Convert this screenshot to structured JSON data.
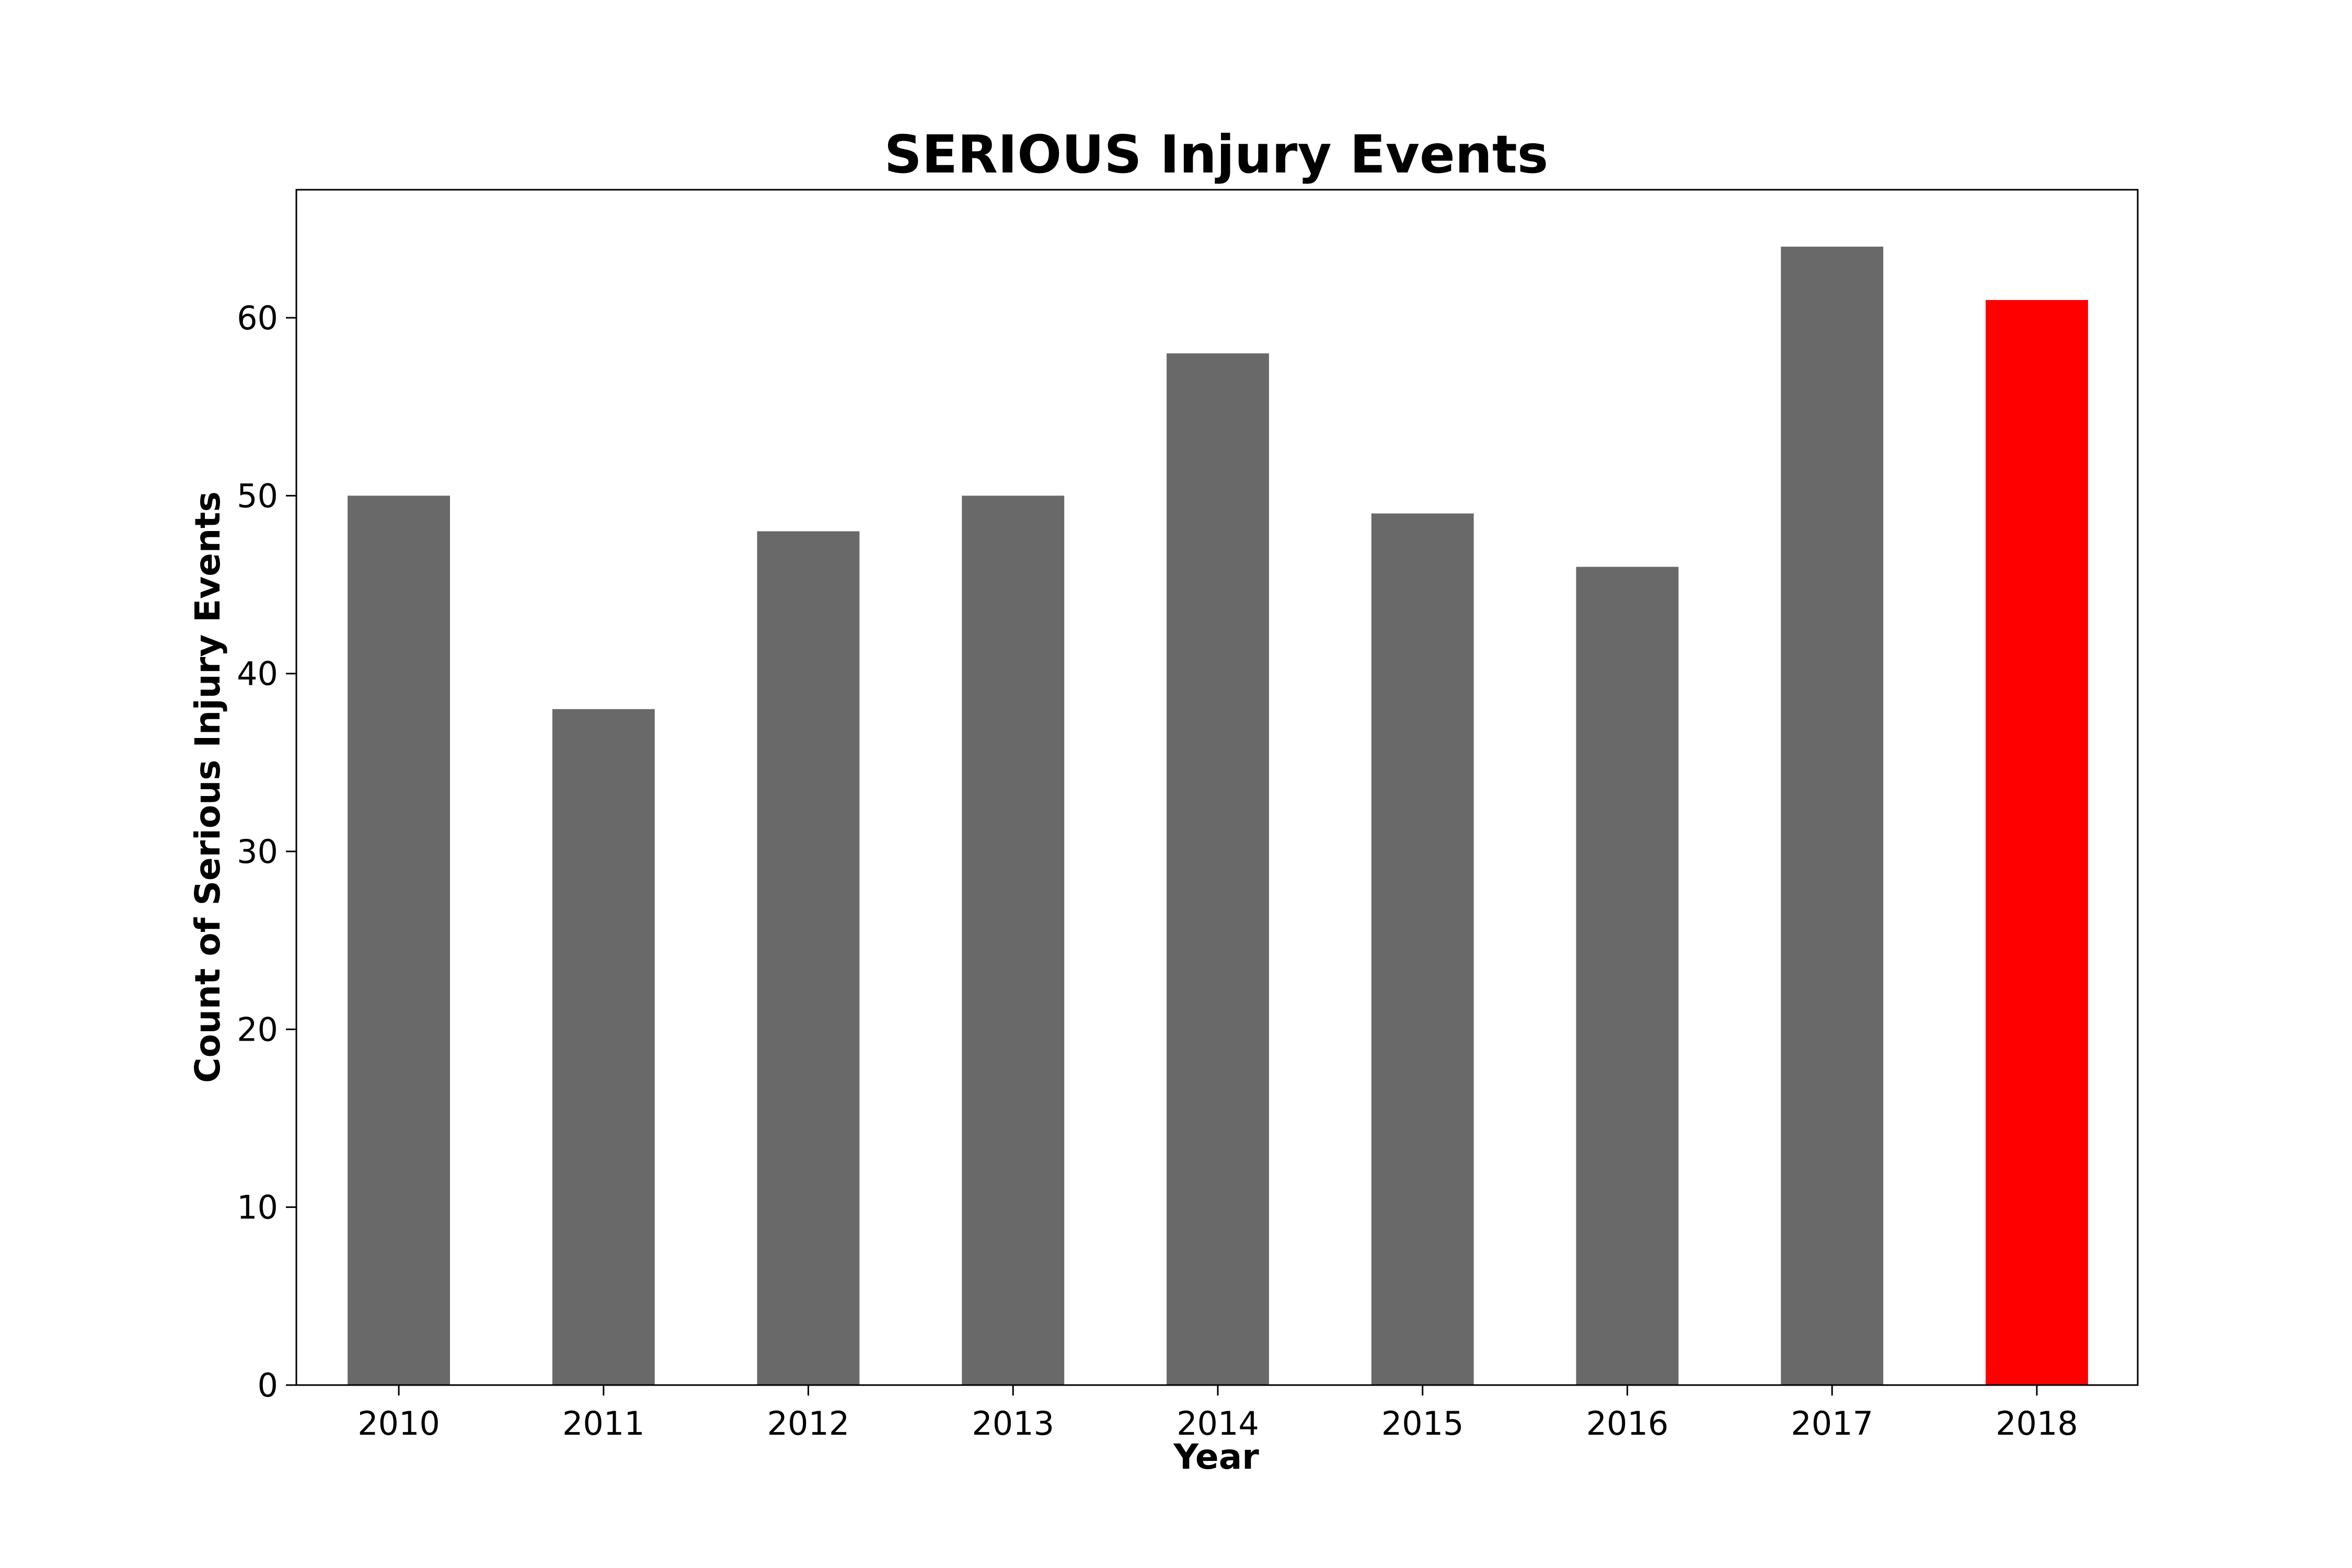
{
  "chart_data": {
    "type": "bar",
    "title": "SERIOUS Injury Events",
    "xlabel": "Year",
    "ylabel": "Count of Serious Injury Events",
    "categories": [
      "2010",
      "2011",
      "2012",
      "2013",
      "2014",
      "2015",
      "2016",
      "2017",
      "2018"
    ],
    "values": [
      50,
      38,
      48,
      50,
      58,
      49,
      46,
      64,
      61
    ],
    "bar_colors": [
      "#696969",
      "#696969",
      "#696969",
      "#696969",
      "#696969",
      "#696969",
      "#696969",
      "#696969",
      "#ff0000"
    ],
    "ylim": [
      0,
      67.2
    ],
    "yticks": [
      0,
      10,
      20,
      30,
      40,
      50,
      60
    ],
    "grid": false,
    "legend": "none"
  }
}
